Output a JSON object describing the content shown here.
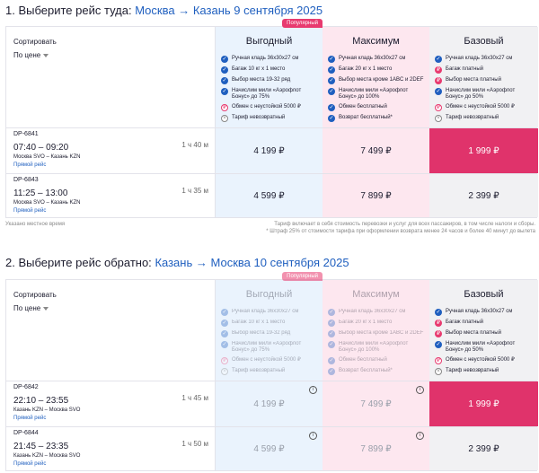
{
  "outbound": {
    "title_prefix": "1. Выберите рейс туда:",
    "origin": "Москва",
    "arrow": "→",
    "destination_date": "Казань 9 сентября 2025",
    "sort_label": "Сортировать",
    "sort_value": "По цене",
    "tariffs": [
      {
        "name": "Выгодный",
        "badge": "Популярный",
        "features": [
          {
            "icon": "check-icon",
            "text": "Ручная кладь 36x30x27 см"
          },
          {
            "icon": "check-icon",
            "text": "Багаж 10 кг x 1 место"
          },
          {
            "icon": "check-icon",
            "text": "Выбор места 19-32 ряд"
          },
          {
            "icon": "check-icon",
            "text": "Начислим мили «Аэрофлот Бонус» до 75%"
          },
          {
            "icon": "paid-icon",
            "text": "Обмен с неустойкой 5000 ₽"
          },
          {
            "icon": "no-icon",
            "text": "Тариф невозвратный"
          }
        ]
      },
      {
        "name": "Максимум",
        "features": [
          {
            "icon": "check-icon",
            "text": "Ручная кладь 36x30x27 см"
          },
          {
            "icon": "check-icon",
            "text": "Багаж 20 кг x 1 место"
          },
          {
            "icon": "check-icon",
            "text": "Выбор места кроме 1ABC и 2DEF"
          },
          {
            "icon": "check-icon",
            "text": "Начислим мили «Аэрофлот Бонус» до 100%"
          },
          {
            "icon": "check-icon",
            "text": "Обмен бесплатный"
          },
          {
            "icon": "check-icon",
            "text": "Возврат бесплатный*"
          }
        ]
      },
      {
        "name": "Базовый",
        "features": [
          {
            "icon": "check-icon",
            "text": "Ручная кладь 36x30x27 см"
          },
          {
            "icon": "paid-icon",
            "text": "Багаж платный"
          },
          {
            "icon": "paid-icon",
            "text": "Выбор места платный"
          },
          {
            "icon": "check-icon",
            "text": "Начислим мили «Аэрофлот Бонус» до 50%"
          },
          {
            "icon": "paid-icon",
            "text": "Обмен с неустойкой 5000 ₽"
          },
          {
            "icon": "no-icon",
            "text": "Тариф невозвратный"
          }
        ]
      }
    ],
    "flights": [
      {
        "number": "DP-6841",
        "time": "07:40 – 09:20",
        "route": "Москва SVO – Казань KZN",
        "link": "Прямой рейс",
        "duration": "1 ч 40 м",
        "prices": [
          "4 199 ₽",
          "7 499 ₽",
          "1 999 ₽"
        ]
      },
      {
        "number": "DP-6843",
        "time": "11:25 – 13:00",
        "route": "Москва SVO – Казань KZN",
        "link": "Прямой рейс",
        "duration": "1 ч 35 м",
        "prices": [
          "4 599 ₽",
          "7 899 ₽",
          "2 399 ₽"
        ]
      }
    ],
    "footnote_left": "Указано местное время",
    "footnote_right_1": "Тариф включает в себя стоимость перевозки и услуг для всех пассажиров, в том числе налоги и сборы.",
    "footnote_right_2": "* Штраф 25% от стоимости тарифа при оформлении возврата менее 24 часов и более 40 минут до вылета"
  },
  "return": {
    "title_prefix": "2. Выберите рейс обратно:",
    "origin": "Казань",
    "arrow": "→",
    "destination_date": "Москва 10 сентября 2025",
    "sort_label": "Сортировать",
    "sort_value": "По цене",
    "tariffs": [
      {
        "name": "Выгодный",
        "badge": "Популярный",
        "features": [
          {
            "icon": "check-icon",
            "text": "Ручная кладь 36x30x27 см"
          },
          {
            "icon": "check-icon",
            "text": "Багаж 10 кг x 1 место"
          },
          {
            "icon": "check-icon",
            "text": "Выбор места 19-32 ряд"
          },
          {
            "icon": "check-icon",
            "text": "Начислим мили «Аэрофлот Бонус» до 75%"
          },
          {
            "icon": "paid-icon",
            "text": "Обмен с неустойкой 5000 ₽"
          },
          {
            "icon": "no-icon",
            "text": "Тариф невозвратный"
          }
        ]
      },
      {
        "name": "Максимум",
        "features": [
          {
            "icon": "check-icon",
            "text": "Ручная кладь 36x30x27 см"
          },
          {
            "icon": "check-icon",
            "text": "Багаж 20 кг x 1 место"
          },
          {
            "icon": "check-icon",
            "text": "Выбор места кроме 1ABC и 2DEF"
          },
          {
            "icon": "check-icon",
            "text": "Начислим мили «Аэрофлот Бонус» до 100%"
          },
          {
            "icon": "check-icon",
            "text": "Обмен бесплатный"
          },
          {
            "icon": "check-icon",
            "text": "Возврат бесплатный*"
          }
        ]
      },
      {
        "name": "Базовый",
        "features": [
          {
            "icon": "check-icon",
            "text": "Ручная кладь 36x30x27 см"
          },
          {
            "icon": "paid-icon",
            "text": "Багаж платный"
          },
          {
            "icon": "paid-icon",
            "text": "Выбор места платный"
          },
          {
            "icon": "check-icon",
            "text": "Начислим мили «Аэрофлот Бонус» до 50%"
          },
          {
            "icon": "paid-icon",
            "text": "Обмен с неустойкой 5000 ₽"
          },
          {
            "icon": "no-icon",
            "text": "Тариф невозвратный"
          }
        ]
      }
    ],
    "flights": [
      {
        "number": "DP-6842",
        "time": "22:10 – 23:55",
        "route": "Казань KZN – Москва SVO",
        "link": "Прямой рейс",
        "duration": "1 ч 45 м",
        "prices": [
          "4 199 ₽",
          "7 499 ₽",
          "1 999 ₽"
        ]
      },
      {
        "number": "DP-6844",
        "time": "21:45 – 23:35",
        "route": "Казань KZN – Москва SVO",
        "link": "Прямой рейс",
        "duration": "1 ч 50 м",
        "prices": [
          "4 599 ₽",
          "7 899 ₽",
          "2 399 ₽"
        ]
      }
    ]
  },
  "colors": {
    "accent": "#1f5fbf",
    "selected": "#e0336b",
    "cheap_bg": "#eaf3fd",
    "max_bg": "#fde7ef",
    "base_bg": "#f1f1f3"
  }
}
